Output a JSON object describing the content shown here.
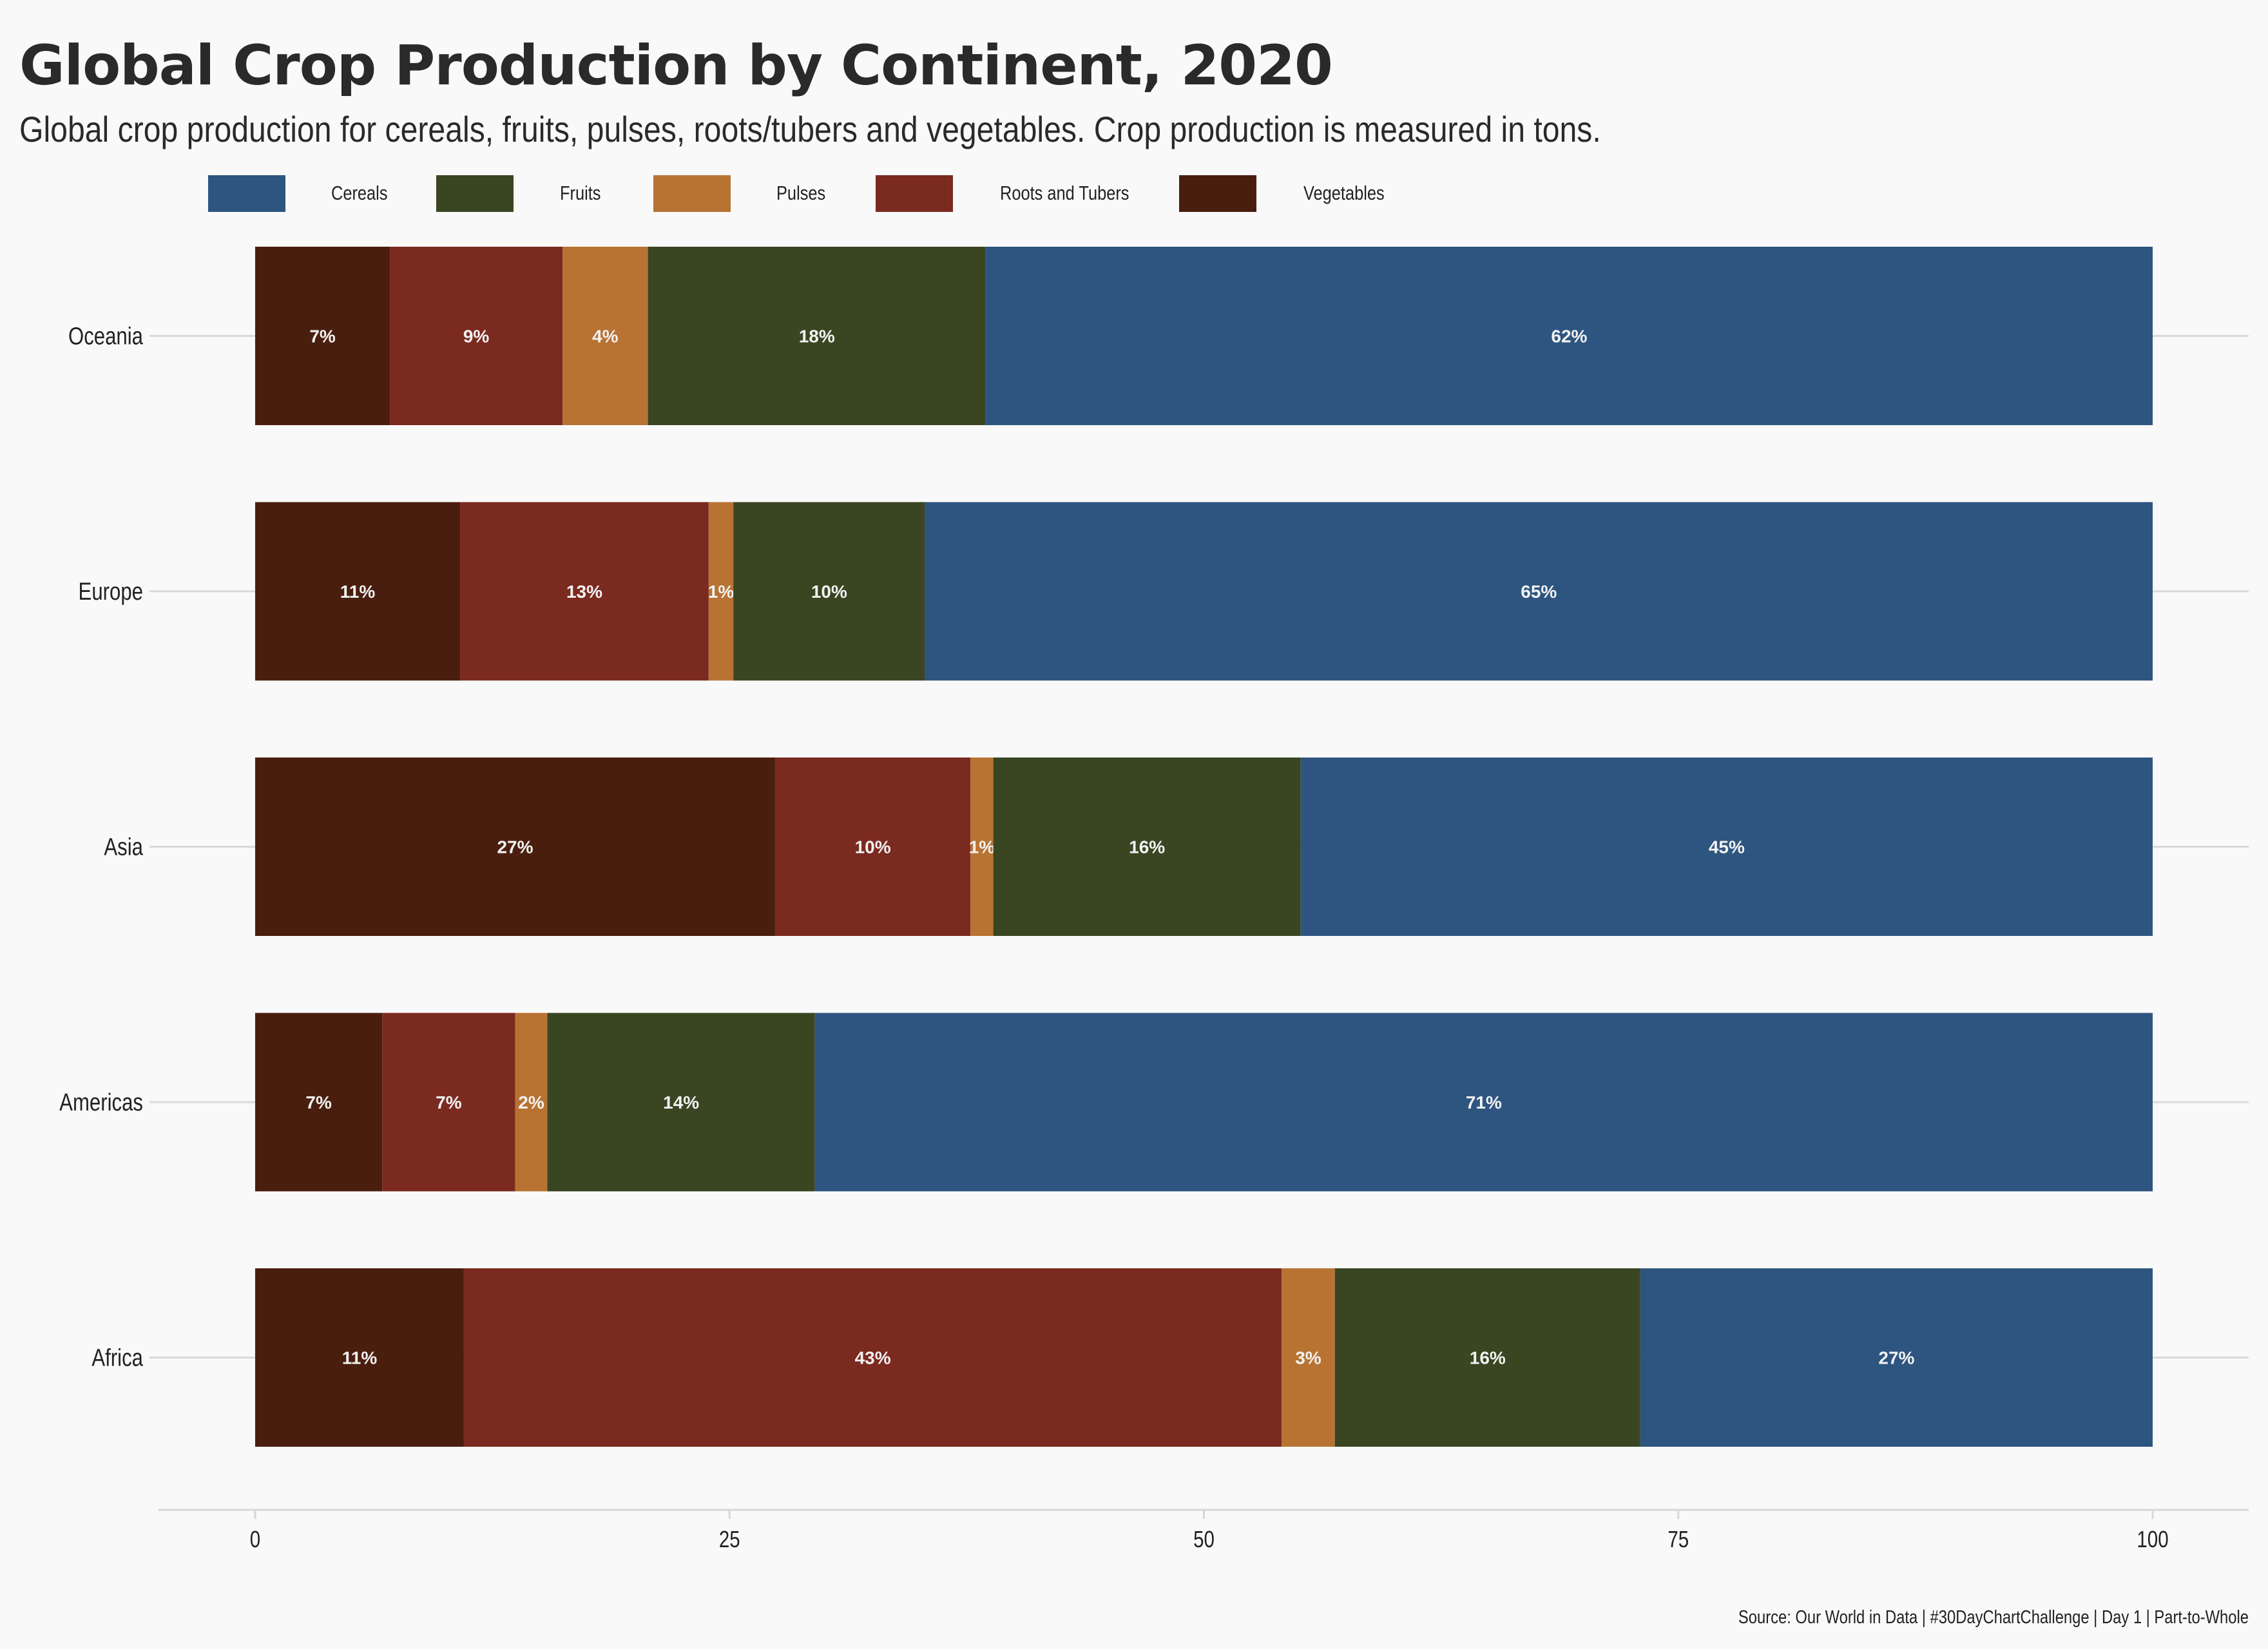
{
  "chart_data": {
    "type": "bar",
    "orientation": "horizontal",
    "stacked": true,
    "title": "Global Crop Production by Continent, 2020",
    "subtitle": "Global crop production for cereals, fruits, pulses, roots/tubers and vegetables. Crop production is measured in tons.",
    "source": "Source: Our World in Data | #30DayChartChallenge | Day 1 | Part-to-Whole",
    "categories": [
      "Oceania",
      "Europe",
      "Asia",
      "Americas",
      "Africa"
    ],
    "stack_order": [
      "Vegetables",
      "Roots and Tubers",
      "Pulses",
      "Fruits",
      "Cereals"
    ],
    "legend_order": [
      "Cereals",
      "Fruits",
      "Pulses",
      "Roots and Tubers",
      "Vegetables"
    ],
    "legend_position": "top",
    "colors": {
      "Cereals": "#2e5580",
      "Fruits": "#3a4522",
      "Pulses": "#b87333",
      "Roots and Tubers": "#7b2a20",
      "Vegetables": "#4a1e0e"
    },
    "series": [
      {
        "name": "Vegetables",
        "values": [
          7.1,
          10.8,
          27.4,
          6.7,
          11.0
        ],
        "labels": [
          "7%",
          "11%",
          "27%",
          "7%",
          "11%"
        ]
      },
      {
        "name": "Roots and Tubers",
        "values": [
          9.1,
          13.1,
          10.3,
          7.0,
          43.1
        ],
        "labels": [
          "9%",
          "13%",
          "10%",
          "7%",
          "43%"
        ]
      },
      {
        "name": "Pulses",
        "values": [
          4.5,
          1.3,
          1.2,
          1.7,
          2.8
        ],
        "labels": [
          "4%",
          "1%",
          "1%",
          "2%",
          "3%"
        ]
      },
      {
        "name": "Fruits",
        "values": [
          17.8,
          10.1,
          16.2,
          14.1,
          16.1
        ],
        "labels": [
          "18%",
          "10%",
          "16%",
          "14%",
          "16%"
        ]
      },
      {
        "name": "Cereals",
        "values": [
          61.5,
          64.7,
          44.9,
          70.5,
          27.0
        ],
        "labels": [
          "62%",
          "65%",
          "45%",
          "71%",
          "27%"
        ]
      }
    ],
    "x_ticks": [
      0,
      25,
      50,
      75,
      100
    ],
    "xlim": [
      -5,
      105
    ],
    "xlabel": "",
    "ylabel": "",
    "grid": "horizontal major lines only"
  }
}
